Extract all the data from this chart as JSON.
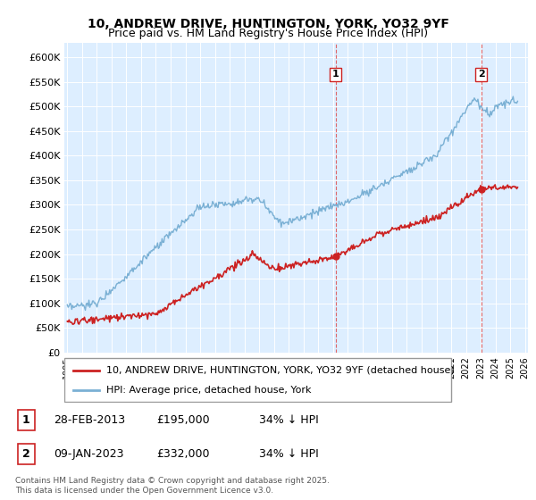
{
  "title": "10, ANDREW DRIVE, HUNTINGTON, YORK, YO32 9YF",
  "subtitle": "Price paid vs. HM Land Registry's House Price Index (HPI)",
  "hpi_color": "#7ab0d4",
  "property_color": "#cc2222",
  "dashed_line_color": "#cc2222",
  "plot_bg_color": "#ddeeff",
  "ylim": [
    0,
    620000
  ],
  "yticks": [
    0,
    50000,
    100000,
    150000,
    200000,
    250000,
    300000,
    350000,
    400000,
    450000,
    500000,
    550000,
    600000
  ],
  "legend_entries": [
    "10, ANDREW DRIVE, HUNTINGTON, YORK, YO32 9YF (detached house)",
    "HPI: Average price, detached house, York"
  ],
  "annotation_1": {
    "label": "1",
    "date": "28-FEB-2013",
    "price": "£195,000",
    "note": "34% ↓ HPI"
  },
  "annotation_2": {
    "label": "2",
    "date": "09-JAN-2023",
    "price": "£332,000",
    "note": "34% ↓ HPI"
  },
  "footer": "Contains HM Land Registry data © Crown copyright and database right 2025.\nThis data is licensed under the Open Government Licence v3.0.",
  "sale1_year": 2013.17,
  "sale2_year": 2023.03,
  "sale1_price": 195000,
  "sale2_price": 332000
}
